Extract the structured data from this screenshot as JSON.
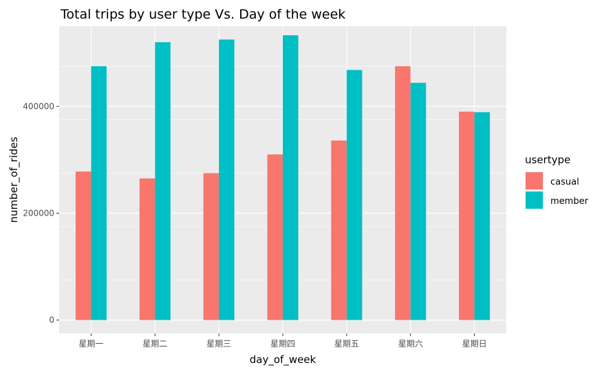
{
  "chart_data": {
    "type": "bar",
    "title": "Total trips by user type Vs. Day of the week",
    "xlabel": "day_of_week",
    "ylabel": "number_of_rides",
    "categories": [
      "星期一",
      "星期二",
      "星期三",
      "星期四",
      "星期五",
      "星期六",
      "星期日"
    ],
    "series": [
      {
        "name": "casual",
        "color": "#F8766D",
        "values": [
          278000,
          265000,
          275000,
          310000,
          336000,
          475000,
          390000
        ]
      },
      {
        "name": "member",
        "color": "#00BFC4",
        "values": [
          475000,
          520000,
          525000,
          533000,
          468000,
          444000,
          389000
        ]
      }
    ],
    "ylim": [
      -25000,
      550000
    ],
    "yticks": [
      0,
      200000,
      400000
    ],
    "ytick_labels": [
      "0",
      "200000",
      "400000"
    ],
    "grid": true,
    "legend": {
      "title": "usertype",
      "position": "right"
    },
    "panel_background": "#EBEBEB"
  }
}
